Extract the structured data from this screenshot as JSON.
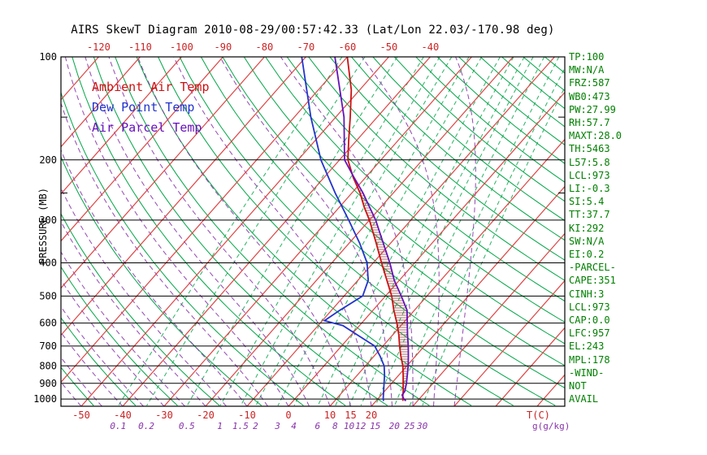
{
  "title": "AIRS SkewT Diagram 2010-08-29/00:57:42.33 (Lat/Lon 22.03/-170.98 deg)",
  "legend": [
    {
      "name": "ambient",
      "label": "Ambient Air Temp",
      "color": "#cc1111"
    },
    {
      "name": "dewpoint",
      "label": "Dew Point Temp",
      "color": "#2233cc"
    },
    {
      "name": "parcel",
      "label": "Air Parcel Temp",
      "color": "#6611bb"
    }
  ],
  "stats_panel": {
    "color": "#008000",
    "lines": [
      "TP:100",
      "MW:N/A",
      "FRZ:587",
      "WB0:473",
      "PW:27.99",
      "RH:57.7",
      "MAXT:28.0",
      "TH:5463",
      "L57:5.8",
      "LCL:973",
      "LI:-0.3",
      "SI:5.4",
      "TT:37.7",
      "KI:292",
      "SW:N/A",
      "EI:0.2",
      "-PARCEL-",
      "CAPE:351",
      "CINH:3",
      "LCL:973",
      "CAP:0.0",
      "LFC:957",
      "EL:243",
      "MPL:178",
      "-WIND-",
      "NOT",
      "AVAIL"
    ]
  },
  "chart_data": {
    "type": "line",
    "variant": "skew-t-log-p",
    "title": "AIRS SkewT Diagram 2010-08-29/00:57:42.33 (Lat/Lon 22.03/-170.98 deg)",
    "ylabel": "PRESSURE (MB)",
    "xlabel_temp": "T(C)",
    "xlabel_mixing": "g(g/kg)",
    "pressure_range_mb": [
      100,
      1050
    ],
    "pressure_ticks_mb": [
      100,
      200,
      300,
      400,
      500,
      600,
      700,
      800,
      900,
      1000
    ],
    "pressure_minor_ticks_mb": [
      150,
      250
    ],
    "top_temp_ticks_c": [
      -120,
      -110,
      -100,
      -90,
      -80,
      -70,
      -60,
      -50,
      -40
    ],
    "bottom_temp_ticks_c": [
      -50,
      -40,
      -30,
      -20,
      -10,
      0,
      10,
      15,
      20
    ],
    "mixing_ratio_ticks_gkg": [
      0.1,
      0.2,
      0.5,
      1,
      1.5,
      2,
      3,
      4,
      6,
      8,
      10,
      12,
      15,
      20,
      25,
      30
    ],
    "isotherms_c": {
      "min": -130,
      "max": 70,
      "step": 10,
      "color": "#dd4444"
    },
    "dry_adiabats_c": {
      "min": -60,
      "max": 250,
      "step": 10,
      "color": "#00a646"
    },
    "moist_adiabats_c": {
      "min": -60,
      "max": 40,
      "step": 5,
      "color": "#8833aa"
    },
    "mixing_lines_color": "#00a646",
    "grid_color": "#000000",
    "legend_position": "upper-left",
    "series": [
      {
        "name": "Ambient Air Temp",
        "color": "#cc1111",
        "points_p_t": [
          [
            100,
            -60
          ],
          [
            125,
            -52
          ],
          [
            150,
            -46.5
          ],
          [
            175,
            -42
          ],
          [
            200,
            -38
          ],
          [
            225,
            -33
          ],
          [
            250,
            -28
          ],
          [
            275,
            -24
          ],
          [
            300,
            -20
          ],
          [
            350,
            -13.5
          ],
          [
            400,
            -8
          ],
          [
            450,
            -3
          ],
          [
            500,
            1.5
          ],
          [
            550,
            5
          ],
          [
            600,
            8.5
          ],
          [
            650,
            11.5
          ],
          [
            700,
            14
          ],
          [
            750,
            16.5
          ],
          [
            800,
            19
          ],
          [
            850,
            21
          ],
          [
            900,
            22.8
          ],
          [
            950,
            24.5
          ],
          [
            1000,
            26
          ],
          [
            1013,
            26.5
          ]
        ]
      },
      {
        "name": "Dew Point Temp",
        "color": "#2233cc",
        "points_p_t": [
          [
            100,
            -71
          ],
          [
            150,
            -56
          ],
          [
            200,
            -44.5
          ],
          [
            250,
            -34
          ],
          [
            300,
            -25
          ],
          [
            350,
            -17.5
          ],
          [
            400,
            -11.5
          ],
          [
            450,
            -7.5
          ],
          [
            500,
            -5.5
          ],
          [
            550,
            -8
          ],
          [
            590,
            -9.5
          ],
          [
            610,
            -4
          ],
          [
            650,
            1.5
          ],
          [
            700,
            8
          ],
          [
            750,
            11.5
          ],
          [
            800,
            14.5
          ],
          [
            850,
            16.5
          ],
          [
            900,
            18.2
          ],
          [
            950,
            19.8
          ],
          [
            1000,
            21.3
          ],
          [
            1013,
            21.8
          ]
        ]
      },
      {
        "name": "Air Parcel Temp",
        "color": "#6611bb",
        "points_p_t": [
          [
            100,
            -63
          ],
          [
            150,
            -48
          ],
          [
            200,
            -38.8
          ],
          [
            225,
            -32.8
          ],
          [
            250,
            -27.3
          ],
          [
            300,
            -18.5
          ],
          [
            350,
            -11.8
          ],
          [
            400,
            -6
          ],
          [
            450,
            -1.2
          ],
          [
            500,
            3.8
          ],
          [
            550,
            8.2
          ],
          [
            600,
            11.0
          ],
          [
            650,
            13.6
          ],
          [
            700,
            16.1
          ],
          [
            750,
            18.3
          ],
          [
            800,
            20.3
          ],
          [
            850,
            22.0
          ],
          [
            900,
            23.6
          ],
          [
            950,
            24.9
          ],
          [
            973,
            25.0
          ],
          [
            1000,
            26.3
          ],
          [
            1013,
            27.2
          ]
        ]
      }
    ],
    "cape_hatch": {
      "between": [
        "Air Parcel Temp",
        "Ambient Air Temp"
      ],
      "p_range": [
        250,
        950
      ],
      "color": "#994444"
    }
  }
}
